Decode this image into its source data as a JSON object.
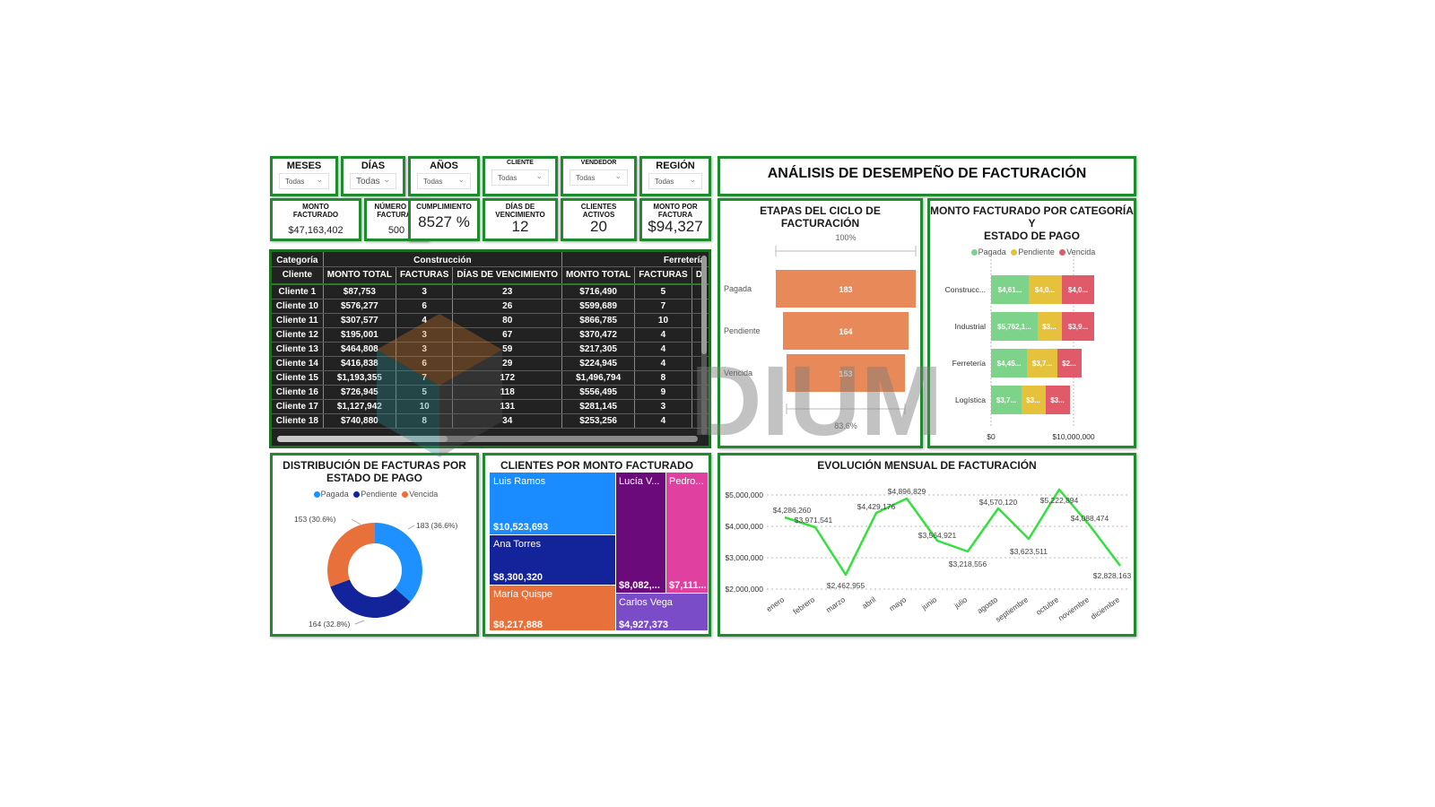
{
  "header": {
    "title": "ANÁLISIS DE DESEMPEÑO DE FACTURACIÓN"
  },
  "slicers": [
    {
      "label": "MESES",
      "value": "Todas"
    },
    {
      "label": "DÍAS",
      "value": "Todas"
    },
    {
      "label": "AÑOS",
      "value": "Todas"
    },
    {
      "label": "CLIENTE",
      "value": "Todas"
    },
    {
      "label": "VENDEDOR",
      "value": "Todas"
    },
    {
      "label": "REGIÓN",
      "value": "Todas"
    }
  ],
  "kpis": [
    {
      "label_1": "MONTO",
      "label_2": "FACTURADO",
      "value": "$47,163,402"
    },
    {
      "label_1": "NÚMERO DE",
      "label_2": "FACTURAS",
      "value": "500"
    },
    {
      "label_1": "CUMPLIMIENTO",
      "label_2": "",
      "value": "8527 %"
    },
    {
      "label_1": "DÍAS DE",
      "label_2": "VENCIMIENTO",
      "value": "12"
    },
    {
      "label_1": "CLIENTES",
      "label_2": "ACTIVOS",
      "value": "20"
    },
    {
      "label_1": "MONTO POR",
      "label_2": "FACTURA",
      "value": "$94,327"
    }
  ],
  "table": {
    "row_header_1": "Categoría",
    "row_header_2": "Cliente",
    "groups": [
      "Construcción",
      "Ferretería"
    ],
    "columns": [
      "MONTO TOTAL",
      "FACTURAS",
      "DÍAS DE VENCIMIENTO",
      "MONTO TOTAL",
      "FACTURAS",
      "DÍ"
    ],
    "rows": [
      {
        "cliente": "Cliente 1",
        "c_monto": "$87,753",
        "c_fact": "3",
        "c_dias": "23",
        "f_monto": "$716,490",
        "f_fact": "5"
      },
      {
        "cliente": "Cliente 10",
        "c_monto": "$576,277",
        "c_fact": "6",
        "c_dias": "26",
        "f_monto": "$599,689",
        "f_fact": "7"
      },
      {
        "cliente": "Cliente 11",
        "c_monto": "$307,577",
        "c_fact": "4",
        "c_dias": "80",
        "f_monto": "$866,785",
        "f_fact": "10"
      },
      {
        "cliente": "Cliente 12",
        "c_monto": "$195,001",
        "c_fact": "3",
        "c_dias": "67",
        "f_monto": "$370,472",
        "f_fact": "4"
      },
      {
        "cliente": "Cliente 13",
        "c_monto": "$464,808",
        "c_fact": "3",
        "c_dias": "59",
        "f_monto": "$217,305",
        "f_fact": "4"
      },
      {
        "cliente": "Cliente 14",
        "c_monto": "$416,838",
        "c_fact": "6",
        "c_dias": "29",
        "f_monto": "$224,945",
        "f_fact": "4"
      },
      {
        "cliente": "Cliente 15",
        "c_monto": "$1,193,355",
        "c_fact": "7",
        "c_dias": "172",
        "f_monto": "$1,496,794",
        "f_fact": "8"
      },
      {
        "cliente": "Cliente 16",
        "c_monto": "$726,945",
        "c_fact": "5",
        "c_dias": "118",
        "f_monto": "$556,495",
        "f_fact": "9"
      },
      {
        "cliente": "Cliente 17",
        "c_monto": "$1,127,942",
        "c_fact": "10",
        "c_dias": "131",
        "f_monto": "$281,145",
        "f_fact": "3"
      },
      {
        "cliente": "Cliente 18",
        "c_monto": "$740,880",
        "c_fact": "8",
        "c_dias": "34",
        "f_monto": "$253,256",
        "f_fact": "4"
      }
    ]
  },
  "funnel": {
    "title": "ETAPAS DEL CICLO DE FACTURACIÓN",
    "top_pct": "100%",
    "bottom_pct": "83.6%",
    "stages": [
      {
        "label": "Pagada",
        "value": "183"
      },
      {
        "label": "Pendiente",
        "value": "164"
      },
      {
        "label": "Vencida",
        "value": "153"
      }
    ],
    "color": "#E8895A"
  },
  "stacked": {
    "title_1": "MONTO FACTURADO POR CATEGORÍA Y",
    "title_2": "ESTADO DE PAGO",
    "legend": [
      {
        "label": "Pagada",
        "color": "#7ED38A"
      },
      {
        "label": "Pendiente",
        "color": "#E6C23C"
      },
      {
        "label": "Vencida",
        "color": "#E05A6A"
      }
    ],
    "axis": [
      "$0",
      "$10,000,000"
    ],
    "rows": [
      {
        "label": "Construcc...",
        "labels": [
          "$4,61...",
          "$4,0...",
          "$4,0..."
        ]
      },
      {
        "label": "Industrial",
        "labels": [
          "$5,762,1...",
          "$3...",
          "$3,9..."
        ]
      },
      {
        "label": "Ferretería",
        "labels": [
          "$4,45...",
          "$3,7...",
          "$2..."
        ]
      },
      {
        "label": "Logística",
        "labels": [
          "$3,7...",
          "$3...",
          "$3..."
        ]
      }
    ]
  },
  "donut": {
    "title_1": "DISTRIBUCIÓN DE FACTURAS POR",
    "title_2": "ESTADO DE PAGO",
    "legend": [
      {
        "label": "Pagada",
        "color": "#1E90FF"
      },
      {
        "label": "Pendiente",
        "color": "#13239A"
      },
      {
        "label": "Vencida",
        "color": "#E8703A"
      }
    ],
    "labels": [
      "183 (36.6%)",
      "164 (32.8%)",
      "153 (30.6%)"
    ]
  },
  "treemap": {
    "title": "CLIENTES POR MONTO FACTURADO",
    "tiles": [
      {
        "name": "Luis Ramos",
        "value": "$10,523,693",
        "color": "#1A8CFF"
      },
      {
        "name": "Ana Torres",
        "value": "$8,300,320",
        "color": "#13239A"
      },
      {
        "name": "María Quispe",
        "value": "$8,217,888",
        "color": "#E8703A"
      },
      {
        "name": "Lucía V...",
        "value": "$8,082,...",
        "color": "#6B0A7A"
      },
      {
        "name": "Pedro...",
        "value": "$7,111...",
        "color": "#E040A0"
      },
      {
        "name": "Carlos Vega",
        "value": "$4,927,373",
        "color": "#7A4CC8"
      }
    ]
  },
  "line": {
    "title": "EVOLUCIÓN MENSUAL DE FACTURACIÓN",
    "y_ticks": [
      "$5,000,000",
      "$4,000,000",
      "$3,000,000",
      "$2,000,000"
    ],
    "months": [
      "enero",
      "febrero",
      "marzo",
      "abril",
      "mayo",
      "junio",
      "julio",
      "agosto",
      "septiembre",
      "octubre",
      "noviembre",
      "diciembre"
    ],
    "value_labels": [
      "$4,286,260",
      "$3,971,541",
      "$2,462,955",
      "$4,429,176",
      "$4,896,829",
      "$3,564,921",
      "$3,218,556",
      "$4,570,120",
      "$3,623,511",
      "$5,222,894",
      "$4,088,474",
      "$2,828,163"
    ],
    "color": "#33E03C"
  },
  "chart_data": [
    {
      "type": "bar",
      "title": "ETAPAS DEL CICLO DE FACTURACIÓN",
      "categories": [
        "Pagada",
        "Pendiente",
        "Vencida"
      ],
      "values": [
        183,
        164,
        153
      ],
      "annotations": [
        "100%",
        "83.6%"
      ]
    },
    {
      "type": "bar",
      "title": "MONTO FACTURADO POR CATEGORÍA Y ESTADO DE PAGO",
      "categories": [
        "Construcción",
        "Industrial",
        "Ferretería",
        "Logística"
      ],
      "series": [
        {
          "name": "Pagada",
          "values": [
            4610000,
            5762100,
            4450000,
            3700000
          ]
        },
        {
          "name": "Pendiente",
          "values": [
            4000000,
            3000000,
            3700000,
            3000000
          ]
        },
        {
          "name": "Vencida",
          "values": [
            4000000,
            3900000,
            2000000,
            3000000
          ]
        }
      ],
      "xlim": [
        0,
        12000000
      ],
      "x_ticks": [
        "$0",
        "$10,000,000"
      ]
    },
    {
      "type": "pie",
      "title": "DISTRIBUCIÓN DE FACTURAS POR ESTADO DE PAGO",
      "categories": [
        "Pagada",
        "Pendiente",
        "Vencida"
      ],
      "values": [
        183,
        164,
        153
      ],
      "percents": [
        36.6,
        32.8,
        30.6
      ]
    },
    {
      "type": "heatmap",
      "title": "CLIENTES POR MONTO FACTURADO",
      "categories": [
        "Luis Ramos",
        "Ana Torres",
        "María Quispe",
        "Lucía V...",
        "Pedro...",
        "Carlos Vega"
      ],
      "values": [
        10523693,
        8300320,
        8217888,
        8082000,
        7111000,
        4927373
      ]
    },
    {
      "type": "line",
      "title": "EVOLUCIÓN MENSUAL DE FACTURACIÓN",
      "x": [
        "enero",
        "febrero",
        "marzo",
        "abril",
        "mayo",
        "junio",
        "julio",
        "agosto",
        "septiembre",
        "octubre",
        "noviembre",
        "diciembre"
      ],
      "values": [
        4286260,
        3971541,
        2462955,
        4429176,
        4896829,
        3564921,
        3218556,
        4570120,
        3623511,
        5222894,
        4088474,
        2828163
      ],
      "ylim": [
        2000000,
        5300000
      ],
      "y_ticks": [
        "$2,000,000",
        "$3,000,000",
        "$4,000,000",
        "$5,000,000"
      ]
    }
  ]
}
